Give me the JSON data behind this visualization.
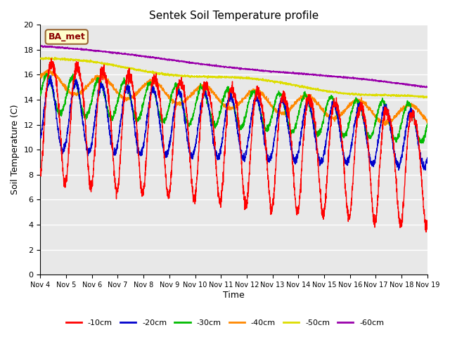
{
  "title": "Sentek Soil Temperature profile",
  "xlabel": "Time",
  "ylabel": "Soil Temperature (C)",
  "ylim": [
    0,
    20
  ],
  "colors": {
    "-10cm": "#ff0000",
    "-20cm": "#0000cc",
    "-30cm": "#00bb00",
    "-40cm": "#ff8800",
    "-50cm": "#dddd00",
    "-60cm": "#9900aa"
  },
  "depths": [
    "-10cm",
    "-20cm",
    "-30cm",
    "-40cm",
    "-50cm",
    "-60cm"
  ],
  "plot_bg_color": "#e8e8e8",
  "fig_bg_color": "#ffffff",
  "legend_label": "BA_met",
  "x_tick_labels": [
    "Nov 4",
    "Nov 5",
    "Nov 6",
    "Nov 7",
    "Nov 8",
    "Nov 9",
    "Nov 10",
    "Nov 11",
    "Nov 12",
    "Nov 13",
    "Nov 14",
    "Nov 15",
    "Nov 16",
    "Nov 17",
    "Nov 18",
    "Nov 19"
  ]
}
